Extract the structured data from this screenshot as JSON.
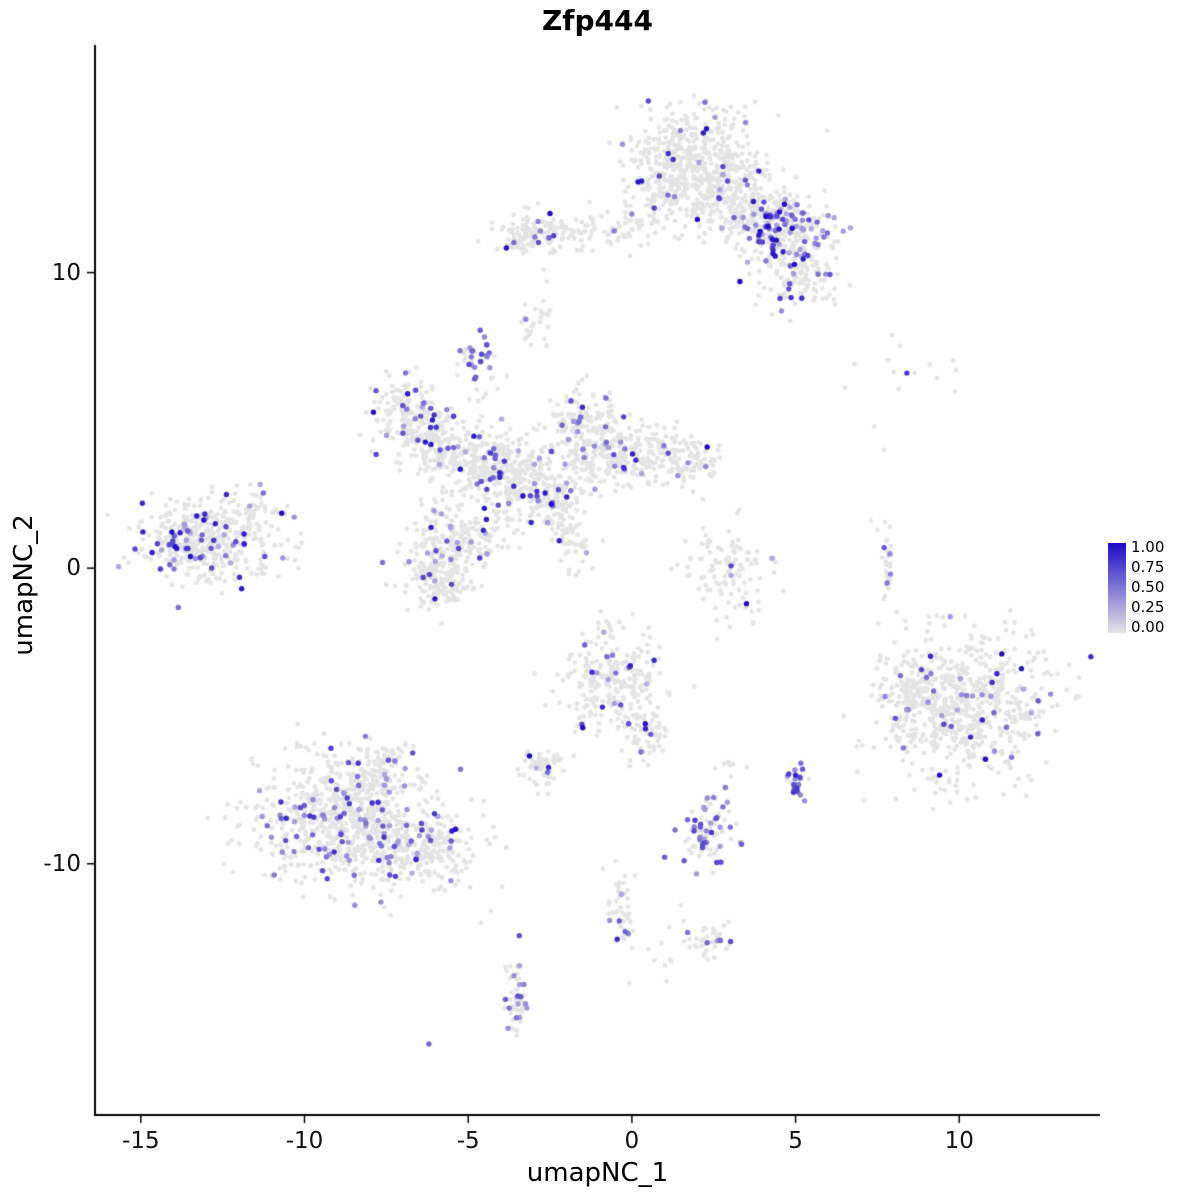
{
  "title": "Zfp444",
  "chart_data": {
    "type": "scatter",
    "title": "Zfp444",
    "xlabel": "umapNC_1",
    "ylabel": "umapNC_2",
    "xlim": [
      -16.4,
      14.3
    ],
    "ylim": [
      -18.5,
      17.7
    ],
    "x_ticks": [
      {
        "v": -15,
        "label": "-15"
      },
      {
        "v": -10,
        "label": "-10"
      },
      {
        "v": -5,
        "label": "-5"
      },
      {
        "v": 0,
        "label": "0"
      },
      {
        "v": 5,
        "label": "5"
      },
      {
        "v": 10,
        "label": "10"
      }
    ],
    "y_ticks": [
      {
        "v": 10,
        "label": "10"
      },
      {
        "v": 0,
        "label": "0"
      },
      {
        "v": -10,
        "label": "-10"
      }
    ],
    "legend": {
      "labels": [
        "1.00",
        "0.75",
        "0.50",
        "0.25",
        "0.00"
      ]
    },
    "colormap": {
      "low": "#E4E4E4",
      "high": "#1E0AC8",
      "axis": "#000000",
      "background": "#FFFFFF"
    },
    "seed": 42,
    "point_radius_gray": 2.4,
    "point_radius_colored": 2.7,
    "clusters": [
      {
        "cx": 1.9,
        "cy": 13.9,
        "sx": 0.95,
        "sy": 0.85,
        "n": 420,
        "frac": 0.04
      },
      {
        "cx": 0.9,
        "cy": 12.7,
        "sx": 0.5,
        "sy": 0.8,
        "n": 90,
        "frac": 0.03
      },
      {
        "cx": 3.1,
        "cy": 12.4,
        "sx": 0.85,
        "sy": 0.65,
        "n": 260,
        "frac": 0.07
      },
      {
        "cx": 4.6,
        "cy": 11.4,
        "sx": 0.75,
        "sy": 0.55,
        "n": 230,
        "frac": 0.3
      },
      {
        "cx": 5.1,
        "cy": 9.9,
        "sx": 0.55,
        "sy": 0.6,
        "n": 140,
        "frac": 0.12
      },
      {
        "cx": -2.2,
        "cy": 11.35,
        "sx": 1.0,
        "sy": 0.28,
        "n": 120,
        "frac": 0.06
      },
      {
        "cx": -3.3,
        "cy": 11.3,
        "sx": 0.3,
        "sy": 0.4,
        "n": 50,
        "frac": 0.04
      },
      {
        "cx": -0.2,
        "cy": 11.5,
        "sx": 0.8,
        "sy": 0.3,
        "n": 30,
        "frac": 0.03
      },
      {
        "cx": -2.9,
        "cy": 8.4,
        "sx": 0.25,
        "sy": 0.4,
        "n": 25,
        "frac": 0.05
      },
      {
        "cx": -4.75,
        "cy": 7.2,
        "sx": 0.22,
        "sy": 0.3,
        "n": 30,
        "frac": 0.65,
        "vmin": 0.35,
        "vmax": 0.8
      },
      {
        "cx": -4.4,
        "cy": 6.0,
        "sx": 0.3,
        "sy": 0.35,
        "n": 10,
        "frac": 0.1
      },
      {
        "cx": -6.9,
        "cy": 5.2,
        "sx": 0.55,
        "sy": 0.65,
        "n": 160,
        "frac": 0.1
      },
      {
        "cx": -5.9,
        "cy": 4.2,
        "sx": 0.5,
        "sy": 0.5,
        "n": 110,
        "frac": 0.08
      },
      {
        "cx": -4.6,
        "cy": 3.6,
        "sx": 0.8,
        "sy": 0.6,
        "n": 230,
        "frac": 0.1
      },
      {
        "cx": -3.2,
        "cy": 2.9,
        "sx": 0.7,
        "sy": 0.55,
        "n": 180,
        "frac": 0.1
      },
      {
        "cx": -1.6,
        "cy": 4.8,
        "sx": 0.6,
        "sy": 0.7,
        "n": 160,
        "frac": 0.07
      },
      {
        "cx": -0.8,
        "cy": 3.9,
        "sx": 0.7,
        "sy": 0.6,
        "n": 150,
        "frac": 0.07
      },
      {
        "cx": 0.6,
        "cy": 3.8,
        "sx": 0.7,
        "sy": 0.5,
        "n": 120,
        "frac": 0.05
      },
      {
        "cx": 1.9,
        "cy": 3.7,
        "sx": 0.45,
        "sy": 0.45,
        "n": 60,
        "frac": 0.05
      },
      {
        "cx": -2.5,
        "cy": 2.3,
        "sx": 0.5,
        "sy": 0.5,
        "n": 90,
        "frac": 0.09
      },
      {
        "cx": -1.9,
        "cy": 1.2,
        "sx": 0.28,
        "sy": 0.6,
        "n": 60,
        "frac": 0.06,
        "rot": 25
      },
      {
        "cx": -5.3,
        "cy": 0.9,
        "sx": 0.75,
        "sy": 0.65,
        "n": 220,
        "frac": 0.07
      },
      {
        "cx": -5.9,
        "cy": -0.5,
        "sx": 0.55,
        "sy": 0.45,
        "n": 120,
        "frac": 0.06
      },
      {
        "cx": -12.9,
        "cy": 1.0,
        "sx": 1.1,
        "sy": 0.75,
        "n": 380,
        "frac": 0.1
      },
      {
        "cx": -13.6,
        "cy": 0.9,
        "sx": 0.5,
        "sy": 0.45,
        "n": 60,
        "frac": 0.3
      },
      {
        "cx": -11.4,
        "cy": 2.0,
        "sx": 0.3,
        "sy": 0.3,
        "n": 25,
        "frac": 0.05
      },
      {
        "cx": 2.9,
        "cy": -0.1,
        "sx": 0.7,
        "sy": 0.75,
        "n": 110,
        "frac": 0.04
      },
      {
        "cx": 7.85,
        "cy": 0.2,
        "sx": 0.08,
        "sy": 0.55,
        "n": 26,
        "frac": 0.12
      },
      {
        "cx": 8.3,
        "cy": 6.3,
        "sx": 1.2,
        "sy": 0.8,
        "n": 10,
        "frac": 0.0
      },
      {
        "cx": 10.3,
        "cy": -4.6,
        "sx": 1.35,
        "sy": 1.25,
        "n": 620,
        "frac": 0.025
      },
      {
        "cx": 8.6,
        "cy": -4.3,
        "sx": 0.5,
        "sy": 0.8,
        "n": 120,
        "frac": 0.04
      },
      {
        "cx": -0.6,
        "cy": -3.9,
        "sx": 0.75,
        "sy": 0.85,
        "n": 260,
        "frac": 0.05
      },
      {
        "cx": 0.4,
        "cy": -5.6,
        "sx": 0.35,
        "sy": 0.5,
        "n": 60,
        "frac": 0.05
      },
      {
        "cx": -2.7,
        "cy": -6.8,
        "sx": 0.3,
        "sy": 0.35,
        "n": 70,
        "frac": 0.08
      },
      {
        "cx": -8.7,
        "cy": -8.6,
        "sx": 1.4,
        "sy": 1.1,
        "n": 700,
        "frac": 0.13,
        "vmin": 0.3,
        "vmax": 0.85
      },
      {
        "cx": -6.3,
        "cy": -9.6,
        "sx": 0.9,
        "sy": 0.6,
        "n": 200,
        "frac": 0.08
      },
      {
        "cx": -8.0,
        "cy": -6.9,
        "sx": 0.7,
        "sy": 0.5,
        "n": 120,
        "frac": 0.12
      },
      {
        "cx": 2.3,
        "cy": -9.0,
        "sx": 0.4,
        "sy": 0.55,
        "n": 85,
        "frac": 0.35,
        "vmin": 0.3,
        "vmax": 0.8
      },
      {
        "cx": 5.0,
        "cy": -7.3,
        "sx": 0.18,
        "sy": 0.28,
        "n": 22,
        "frac": 0.75,
        "vmin": 0.4,
        "vmax": 0.9
      },
      {
        "cx": -0.35,
        "cy": -11.6,
        "sx": 0.18,
        "sy": 0.6,
        "n": 45,
        "frac": 0.08
      },
      {
        "cx": 2.35,
        "cy": -12.6,
        "sx": 0.35,
        "sy": 0.3,
        "n": 40,
        "frac": 0.15
      },
      {
        "cx": -3.55,
        "cy": -14.6,
        "sx": 0.15,
        "sy": 0.75,
        "n": 50,
        "frac": 0.35,
        "vmin": 0.3,
        "vmax": 0.7
      },
      {
        "cx": 0.8,
        "cy": -13.0,
        "sx": 0.6,
        "sy": 0.5,
        "n": 10,
        "frac": 0
      },
      {
        "cx": 3.0,
        "cy": -6.7,
        "sx": 0.25,
        "sy": 0.25,
        "n": 8,
        "frac": 0
      }
    ],
    "extra_colored": [
      [
        -2.5,
        12.0,
        1.0
      ],
      [
        2.3,
        4.1,
        1.0
      ],
      [
        3.5,
        -1.2,
        1.0
      ],
      [
        -1.5,
        -5.4,
        1.0
      ],
      [
        -0.9,
        -4.7,
        0.85
      ],
      [
        11.3,
        -2.9,
        1.0
      ],
      [
        11.9,
        -3.4,
        0.95
      ],
      [
        9.4,
        -7.0,
        1.0
      ],
      [
        12.4,
        -5.6,
        0.6
      ],
      [
        9.0,
        -3.7,
        0.55
      ],
      [
        8.4,
        6.6,
        0.8
      ],
      [
        -6.2,
        -16.1,
        0.55
      ],
      [
        3.3,
        9.7,
        1.0
      ],
      [
        4.1,
        11.9,
        1.0
      ],
      [
        4.9,
        11.5,
        1.0
      ],
      [
        -13.8,
        1.2,
        0.9
      ],
      [
        -0.2,
        -12.3,
        0.6
      ],
      [
        5.0,
        -7.0,
        0.9
      ],
      [
        2.0,
        11.8,
        1.0
      ],
      [
        0.3,
        13.1,
        0.9
      ],
      [
        -7.0,
        5.5,
        0.7
      ],
      [
        -4.0,
        3.2,
        0.6
      ],
      [
        -2.9,
        2.6,
        0.8
      ],
      [
        -12.4,
        1.4,
        0.7
      ],
      [
        2.2,
        -9.3,
        0.7
      ],
      [
        11.6,
        -6.4,
        0.5
      ],
      [
        7.8,
        -0.5,
        0.5
      ],
      [
        7.9,
        -0.2,
        0.45
      ]
    ],
    "extra_gray": [
      [
        6.8,
        6.9
      ],
      [
        9.1,
        6.9
      ],
      [
        9.9,
        6.7
      ],
      [
        7.4,
        4.8
      ],
      [
        7.7,
        4.0
      ],
      [
        2.6,
        -2.4
      ],
      [
        1.2,
        -13.3
      ],
      [
        0.5,
        -12.9
      ],
      [
        -0.5,
        -9.9
      ],
      [
        0.1,
        -10.4
      ],
      [
        -4.6,
        -12.0
      ],
      [
        -4.3,
        -11.6
      ],
      [
        1.5,
        -11.4
      ],
      [
        7.3,
        1.6
      ],
      [
        7.5,
        1.3
      ],
      [
        -2.6,
        9.7
      ],
      [
        -2.7,
        10.1
      ],
      [
        -9.4,
        -5.6
      ],
      [
        -10.6,
        -6.1
      ]
    ]
  }
}
